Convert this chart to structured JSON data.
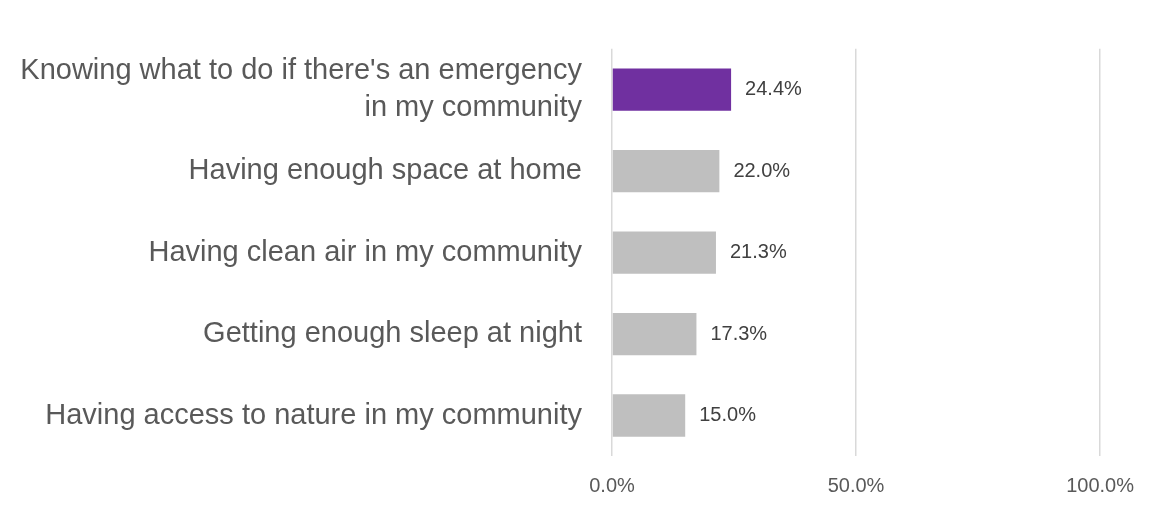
{
  "chart_data": {
    "type": "bar",
    "orientation": "horizontal",
    "categories": [
      "Knowing what to do if there's an emergency in my community",
      "Having enough space at home",
      "Having clean air in my community",
      "Getting enough sleep at night",
      "Having access to nature in my community"
    ],
    "values": [
      24.4,
      22.0,
      21.3,
      17.3,
      15.0
    ],
    "colors": [
      "#7030a0",
      "#bfbfbf",
      "#bfbfbf",
      "#bfbfbf",
      "#bfbfbf"
    ],
    "value_labels": [
      "24.4%",
      "22.0%",
      "21.3%",
      "17.3%",
      "15.0%"
    ],
    "xlim": [
      0,
      100
    ],
    "xticks": [
      {
        "value": 0,
        "label": "0.0%"
      },
      {
        "value": 50,
        "label": "50.0%"
      },
      {
        "value": 100,
        "label": "100.0%"
      }
    ],
    "grid": "x",
    "legend": false
  }
}
